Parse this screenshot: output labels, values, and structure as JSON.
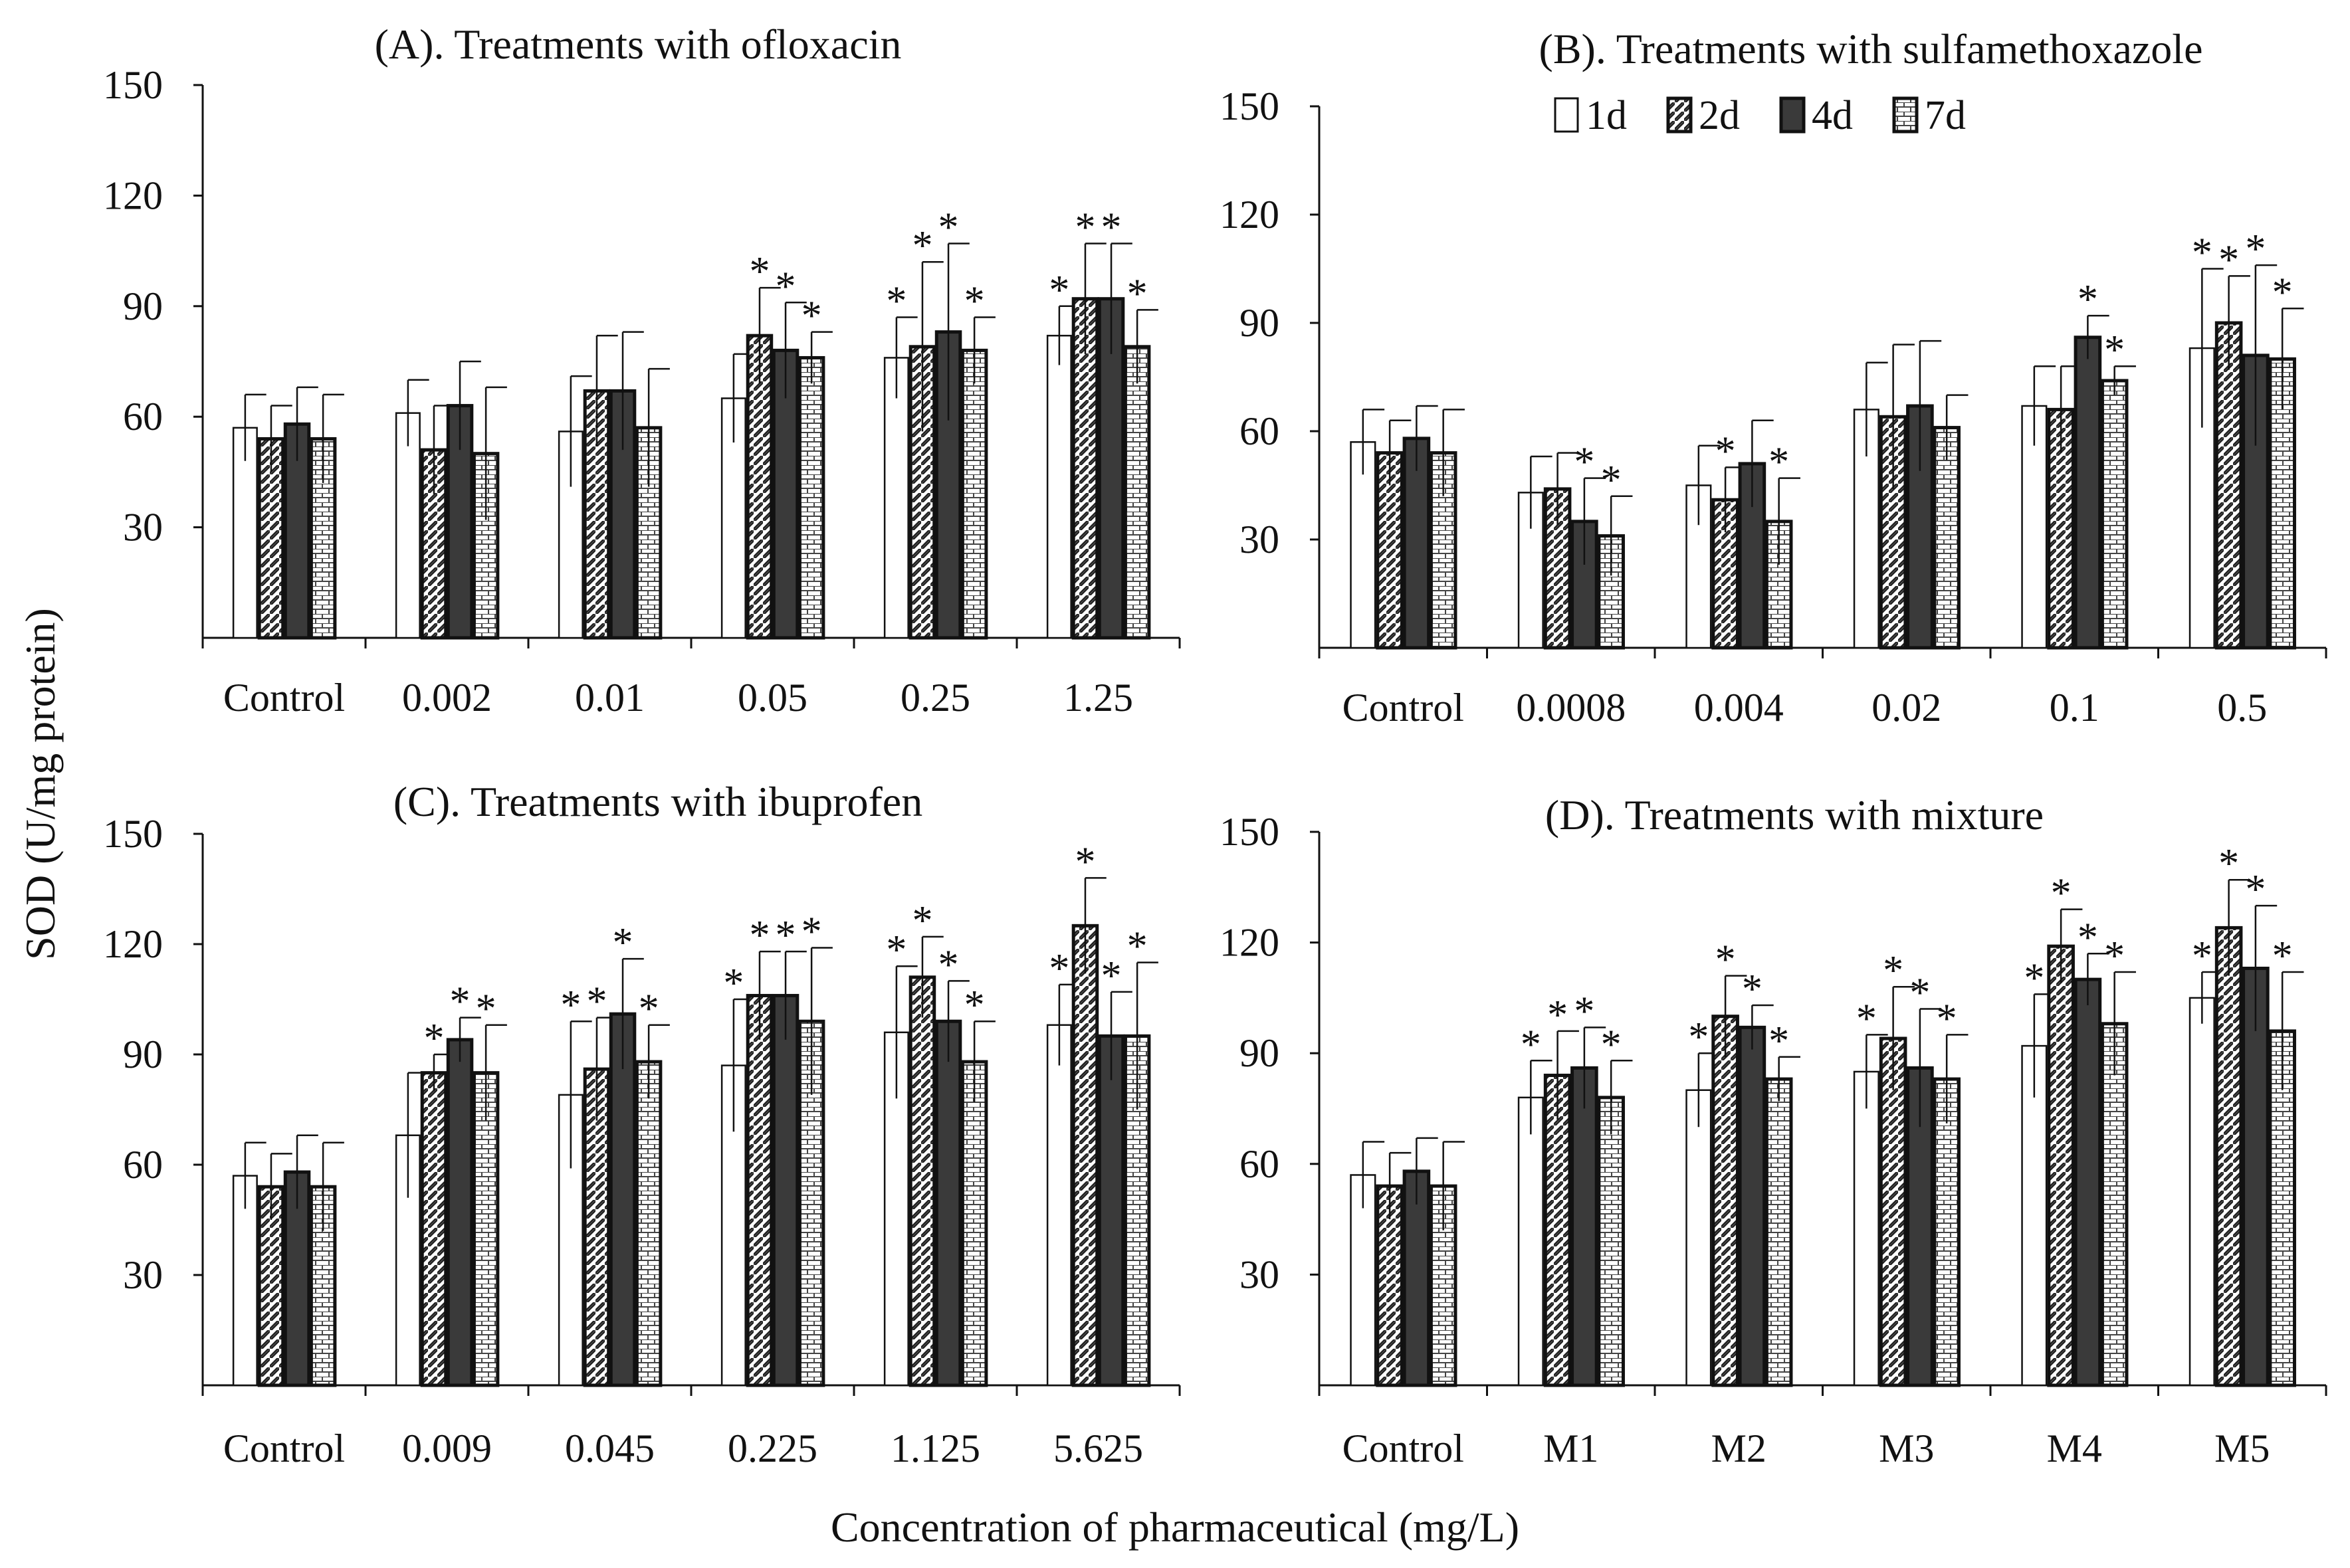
{
  "figure": {
    "ylabel": "SOD (U/mg protein)",
    "xlabel": "Concentration of pharmaceutical (mg/L)"
  },
  "legend": {
    "entries": [
      {
        "label": "1d",
        "pattern": "white"
      },
      {
        "label": "2d",
        "pattern": "diagonal"
      },
      {
        "label": "4d",
        "pattern": "dark"
      },
      {
        "label": "7d",
        "pattern": "brick"
      }
    ]
  },
  "colors": {
    "dark_fill": "#3a3a3a",
    "stroke": "#111111",
    "white": "#ffffff"
  },
  "chart_data": [
    {
      "type": "bar",
      "title": "(A). Treatments with ofloxacin",
      "categories": [
        "Control",
        "0.002",
        "0.01",
        "0.05",
        "0.25",
        "1.25"
      ],
      "ylim": [
        0,
        150
      ],
      "yticks": [
        30,
        60,
        90,
        120,
        150
      ],
      "series": [
        {
          "name": "1d",
          "values": [
            57,
            61,
            56,
            65,
            76,
            82
          ],
          "errors": [
            9,
            9,
            15,
            12,
            11,
            8
          ],
          "stars": [
            false,
            false,
            false,
            false,
            true,
            true
          ]
        },
        {
          "name": "2d",
          "values": [
            54,
            51,
            67,
            82,
            79,
            92
          ],
          "errors": [
            9,
            12,
            15,
            13,
            23,
            15
          ],
          "stars": [
            false,
            false,
            false,
            true,
            true,
            true
          ]
        },
        {
          "name": "4d",
          "values": [
            58,
            63,
            67,
            78,
            83,
            92
          ],
          "errors": [
            10,
            12,
            16,
            13,
            24,
            15
          ],
          "stars": [
            false,
            false,
            false,
            true,
            true,
            true
          ]
        },
        {
          "name": "7d",
          "values": [
            54,
            50,
            57,
            76,
            78,
            79
          ],
          "errors": [
            12,
            18,
            16,
            7,
            9,
            10
          ],
          "stars": [
            false,
            false,
            false,
            true,
            true,
            true
          ]
        }
      ]
    },
    {
      "type": "bar",
      "title": "(B). Treatments with sulfamethoxazole",
      "categories": [
        "Control",
        "0.0008",
        "0.004",
        "0.02",
        "0.1",
        "0.5"
      ],
      "ylim": [
        0,
        150
      ],
      "yticks": [
        30,
        60,
        90,
        120,
        150
      ],
      "series": [
        {
          "name": "1d",
          "values": [
            57,
            43,
            45,
            66,
            67,
            83
          ],
          "errors": [
            9,
            10,
            11,
            13,
            11,
            22
          ],
          "stars": [
            false,
            false,
            false,
            false,
            false,
            true
          ]
        },
        {
          "name": "2d",
          "values": [
            54,
            44,
            41,
            64,
            66,
            90
          ],
          "errors": [
            9,
            10,
            9,
            20,
            12,
            13
          ],
          "stars": [
            false,
            false,
            true,
            false,
            false,
            true
          ]
        },
        {
          "name": "4d",
          "values": [
            58,
            35,
            51,
            67,
            86,
            81
          ],
          "errors": [
            9,
            12,
            12,
            18,
            6,
            25
          ],
          "stars": [
            false,
            true,
            false,
            false,
            true,
            true
          ]
        },
        {
          "name": "7d",
          "values": [
            54,
            31,
            35,
            61,
            74,
            80
          ],
          "errors": [
            12,
            11,
            12,
            9,
            4,
            14
          ],
          "stars": [
            false,
            true,
            true,
            false,
            true,
            true
          ]
        }
      ]
    },
    {
      "type": "bar",
      "title": "(C). Treatments with ibuprofen",
      "categories": [
        "Control",
        "0.009",
        "0.045",
        "0.225",
        "1.125",
        "5.625"
      ],
      "ylim": [
        0,
        150
      ],
      "yticks": [
        30,
        60,
        90,
        120,
        150
      ],
      "series": [
        {
          "name": "1d",
          "values": [
            57,
            68,
            79,
            87,
            96,
            98
          ],
          "errors": [
            9,
            17,
            20,
            18,
            18,
            11
          ],
          "stars": [
            false,
            false,
            true,
            true,
            true,
            true
          ]
        },
        {
          "name": "2d",
          "values": [
            54,
            85,
            86,
            106,
            111,
            125
          ],
          "errors": [
            9,
            5,
            14,
            12,
            11,
            13
          ],
          "stars": [
            false,
            true,
            true,
            true,
            true,
            true
          ]
        },
        {
          "name": "4d",
          "values": [
            58,
            94,
            101,
            106,
            99,
            95
          ],
          "errors": [
            10,
            6,
            15,
            12,
            11,
            12
          ],
          "stars": [
            false,
            true,
            true,
            true,
            true,
            true
          ]
        },
        {
          "name": "7d",
          "values": [
            54,
            85,
            88,
            99,
            88,
            95
          ],
          "errors": [
            12,
            13,
            10,
            20,
            11,
            20
          ],
          "stars": [
            false,
            true,
            true,
            true,
            true,
            true
          ]
        }
      ]
    },
    {
      "type": "bar",
      "title": "(D). Treatments with mixture",
      "categories": [
        "Control",
        "M1",
        "M2",
        "M3",
        "M4",
        "M5"
      ],
      "ylim": [
        0,
        150
      ],
      "yticks": [
        30,
        60,
        90,
        120,
        150
      ],
      "series": [
        {
          "name": "1d",
          "values": [
            57,
            78,
            80,
            85,
            92,
            105
          ],
          "errors": [
            9,
            10,
            10,
            10,
            14,
            7
          ],
          "stars": [
            false,
            true,
            true,
            true,
            true,
            true
          ]
        },
        {
          "name": "2d",
          "values": [
            54,
            84,
            100,
            94,
            119,
            124
          ],
          "errors": [
            9,
            12,
            11,
            14,
            10,
            13
          ],
          "stars": [
            false,
            true,
            true,
            true,
            true,
            true
          ]
        },
        {
          "name": "4d",
          "values": [
            58,
            86,
            97,
            86,
            110,
            113
          ],
          "errors": [
            9,
            11,
            6,
            16,
            7,
            17
          ],
          "stars": [
            false,
            true,
            true,
            true,
            true,
            true
          ]
        },
        {
          "name": "7d",
          "values": [
            54,
            78,
            83,
            83,
            98,
            96
          ],
          "errors": [
            12,
            10,
            6,
            12,
            14,
            16
          ],
          "stars": [
            false,
            true,
            true,
            true,
            true,
            true
          ]
        }
      ]
    }
  ]
}
